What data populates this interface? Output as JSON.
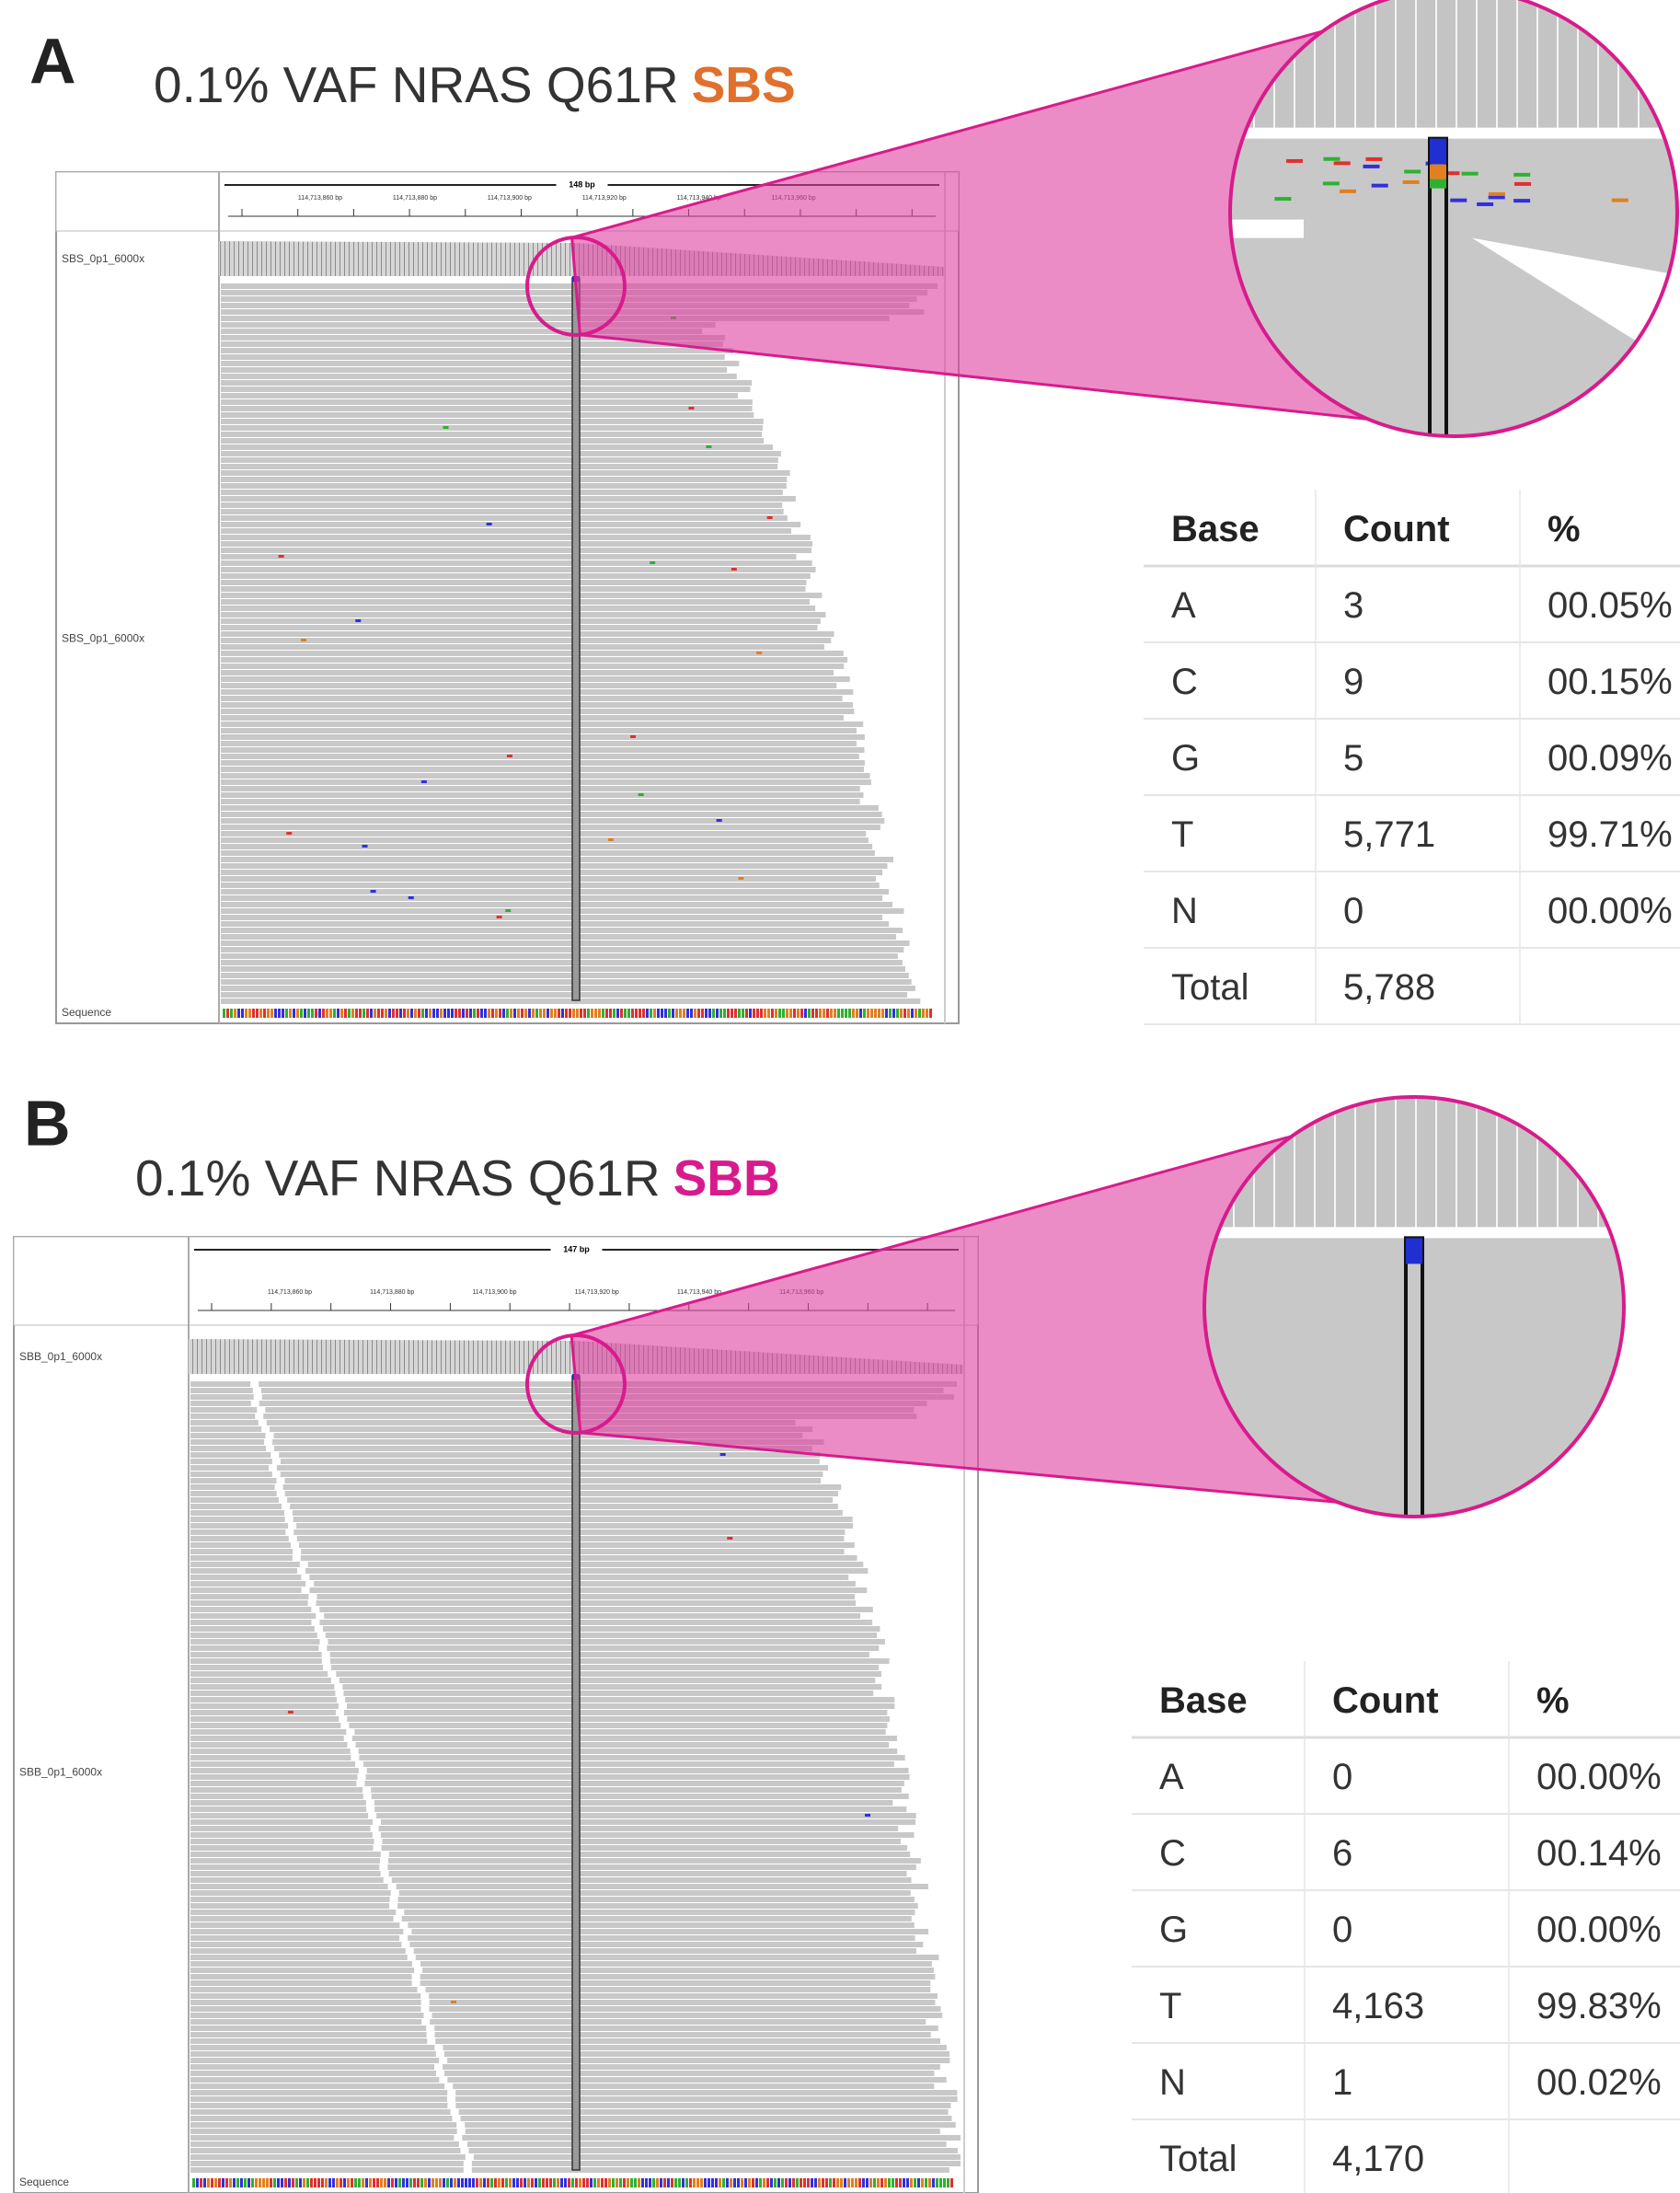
{
  "panels": [
    {
      "label": "A",
      "title": "0.1% VAF NRAS Q61R",
      "title_highlight": "SBS",
      "highlight_color": "#e0702c",
      "igv": {
        "span": "148 bp",
        "positions": [
          "114,713,860 bp",
          "114,713,880 bp",
          "114,713,900 bp",
          "114,713,920 bp",
          "114,713,940 bp",
          "114,713,960 bp"
        ],
        "tracks": [
          "SBS_0p1_6000x",
          "SBS_0p1_6000x"
        ],
        "sequence_label": "Sequence"
      },
      "table": {
        "header": [
          "Base",
          "Count",
          "%"
        ],
        "rows": [
          [
            "A",
            "3",
            "00.05%"
          ],
          [
            "C",
            "9",
            "00.15%"
          ],
          [
            "G",
            "5",
            "00.09%"
          ],
          [
            "T",
            "5,771",
            "99.71%"
          ],
          [
            "N",
            "0",
            "00.00%"
          ],
          [
            "Total",
            "5,788"
          ]
        ]
      }
    },
    {
      "label": "B",
      "title": "0.1% VAF NRAS Q61R",
      "title_highlight": "SBB",
      "highlight_color": "#d81b8c",
      "igv": {
        "span": "147 bp",
        "positions": [
          "114,713,860 bp",
          "114,713,880 bp",
          "114,713,900 bp",
          "114,713,920 bp",
          "114,713,940 bp",
          "114,713,960 bp"
        ],
        "tracks": [
          "SBB_0p1_6000x",
          "SBB_0p1_6000x"
        ],
        "sequence_label": "Sequence"
      },
      "table": {
        "header": [
          "Base",
          "Count",
          "%"
        ],
        "rows": [
          [
            "A",
            "0",
            "00.00%"
          ],
          [
            "C",
            "6",
            "00.14%"
          ],
          [
            "G",
            "0",
            "00.00%"
          ],
          [
            "T",
            "4,163",
            "99.83%"
          ],
          [
            "N",
            "1",
            "00.02%"
          ],
          [
            "Total",
            "4,170"
          ]
        ]
      }
    }
  ]
}
